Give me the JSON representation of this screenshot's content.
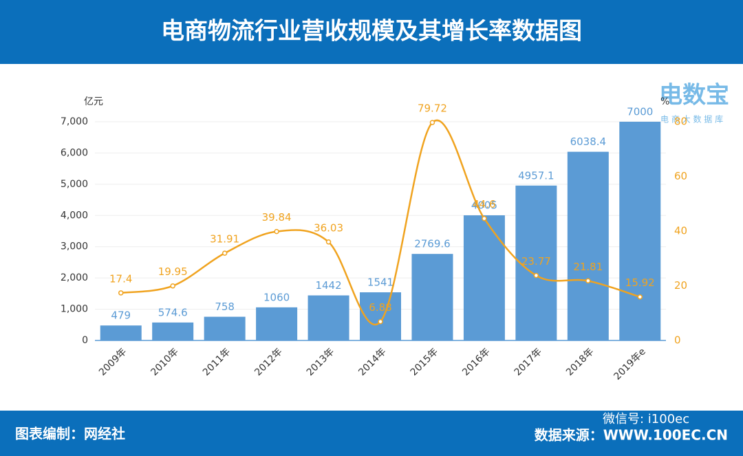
{
  "header": {
    "title": "电商物流行业营收规模及其增长率数据图"
  },
  "watermark": {
    "brand": "电数宝",
    "tagline": "电 商 大 数 据 库"
  },
  "footer": {
    "left": "图表编制：网经社",
    "wechat": "微信号: i100ec",
    "right": "数据来源：WWW.100EC.CN"
  },
  "chart_data": {
    "type": "bar",
    "y_unit": "亿元",
    "y2_unit": "%",
    "categories": [
      "2009年",
      "2010年",
      "2011年",
      "2012年",
      "2013年",
      "2014年",
      "2015年",
      "2016年",
      "2017年",
      "2018年",
      "2019年e"
    ],
    "series": [
      {
        "type": "bar",
        "color": "#5b9bd5",
        "values": [
          479,
          574.6,
          758,
          1060,
          1442,
          1541,
          2769.6,
          4005,
          4957.1,
          6038.4,
          7000
        ]
      },
      {
        "type": "line",
        "axis": "y2",
        "color": "#f0a31f",
        "values": [
          17.4,
          19.95,
          31.91,
          39.84,
          36.03,
          6.88,
          79.72,
          44.6,
          23.77,
          21.81,
          15.92
        ]
      }
    ],
    "ylim": [
      0,
      7000
    ],
    "yticks": [
      0,
      {
        "value": 1000,
        "label": "1,000"
      },
      {
        "value": 2000,
        "label": "2,000"
      },
      {
        "value": 3000,
        "label": "3,000"
      },
      {
        "value": 4000,
        "label": "4,000"
      },
      {
        "value": 5000,
        "label": "5,000"
      },
      {
        "value": 6000,
        "label": "6,000"
      },
      {
        "value": 7000,
        "label": "7,000"
      }
    ],
    "y2lim": [
      0,
      80
    ],
    "y2ticks": [
      0,
      20,
      40,
      60,
      80
    ],
    "grid": true
  }
}
